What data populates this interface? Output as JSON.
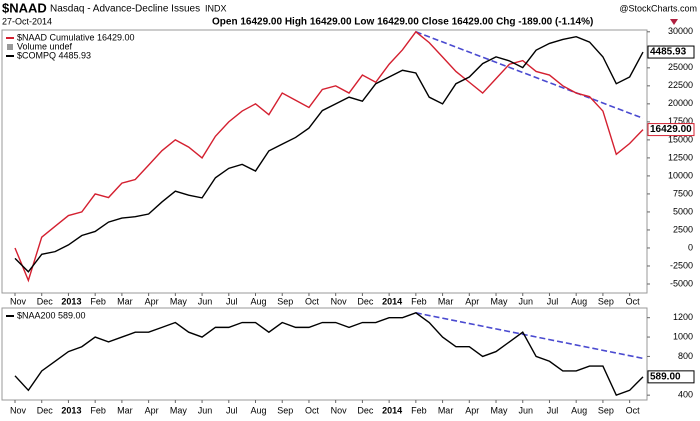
{
  "header": {
    "symbol": "$NAAD",
    "name": "Nasdaq - Advance-Decline Issues",
    "exchange": "INDX",
    "date": "27-Oct-2014",
    "quote": "Open 16429.00  High 16429.00  Low 16429.00  Close 16429.00  Chg -189.00 (-1.14%)",
    "brand": "@StockCharts.com"
  },
  "chart_data": [
    {
      "type": "line",
      "xlim": [
        0,
        47
      ],
      "xticks": [
        {
          "value": 0,
          "label": "Nov"
        },
        {
          "value": 2,
          "label": "Dec"
        },
        {
          "value": 4,
          "label": "2013"
        },
        {
          "value": 6,
          "label": "Feb"
        },
        {
          "value": 8,
          "label": "Mar"
        },
        {
          "value": 10,
          "label": "Apr"
        },
        {
          "value": 12,
          "label": "May"
        },
        {
          "value": 14,
          "label": "Jun"
        },
        {
          "value": 16,
          "label": "Jul"
        },
        {
          "value": 18,
          "label": "Aug"
        },
        {
          "value": 20,
          "label": "Sep"
        },
        {
          "value": 22,
          "label": "Oct"
        },
        {
          "value": 24,
          "label": "Nov"
        },
        {
          "value": 26,
          "label": "Dec"
        },
        {
          "value": 28,
          "label": "2014"
        },
        {
          "value": 30,
          "label": "Feb"
        },
        {
          "value": 32,
          "label": "Mar"
        },
        {
          "value": 34,
          "label": "Apr"
        },
        {
          "value": 36,
          "label": "May"
        },
        {
          "value": 38,
          "label": "Jun"
        },
        {
          "value": 40,
          "label": "Jul"
        },
        {
          "value": 42,
          "label": "Aug"
        },
        {
          "value": 44,
          "label": "Sep"
        },
        {
          "value": 46,
          "label": "Oct"
        }
      ],
      "ylim": [
        -6250,
        30250
      ],
      "yticks": [
        30000,
        25000,
        22500,
        20000,
        17500,
        15000,
        12500,
        10000,
        7500,
        5000,
        2500,
        0,
        -2500,
        -5000
      ],
      "y2lim": [
        2692,
        4650
      ],
      "volume_note": "Volume undef",
      "series": [
        {
          "name": "$NAAD Cumulative 16429.00",
          "color": "#d42030",
          "last_label": "16429.00",
          "values": [
            0,
            -4500,
            1500,
            3000,
            4500,
            5000,
            7500,
            7000,
            9000,
            9500,
            11500,
            13500,
            15000,
            14000,
            12500,
            15500,
            17500,
            19000,
            20000,
            18500,
            21500,
            20500,
            19500,
            22000,
            22500,
            21500,
            24000,
            23000,
            25500,
            27500,
            30000,
            28500,
            26500,
            24500,
            23000,
            21500,
            23500,
            25500,
            26000,
            24500,
            24000,
            22500,
            21500,
            21000,
            19000,
            13000,
            14500,
            16429
          ]
        },
        {
          "name": "$COMPQ 4485.93",
          "color": "#000000",
          "axis": "y2",
          "last_label": "4485.93",
          "values": [
            2950,
            2850,
            2980,
            3000,
            3050,
            3120,
            3150,
            3220,
            3250,
            3260,
            3280,
            3370,
            3450,
            3420,
            3400,
            3550,
            3620,
            3650,
            3600,
            3750,
            3800,
            3850,
            3920,
            4050,
            4100,
            4150,
            4120,
            4250,
            4300,
            4350,
            4330,
            4150,
            4100,
            4250,
            4300,
            4400,
            4450,
            4420,
            4370,
            4500,
            4550,
            4580,
            4600,
            4560,
            4450,
            4250,
            4300,
            4485.93
          ]
        }
      ],
      "trendline": {
        "color": "#4a4ad0",
        "x": [
          30,
          47
        ],
        "values": [
          30000,
          18000
        ]
      }
    },
    {
      "type": "line",
      "xlim": [
        0,
        47
      ],
      "xticks": [
        {
          "value": 0,
          "label": "Nov"
        },
        {
          "value": 2,
          "label": "Dec"
        },
        {
          "value": 4,
          "label": "2013"
        },
        {
          "value": 6,
          "label": "Feb"
        },
        {
          "value": 8,
          "label": "Mar"
        },
        {
          "value": 10,
          "label": "Apr"
        },
        {
          "value": 12,
          "label": "May"
        },
        {
          "value": 14,
          "label": "Jun"
        },
        {
          "value": 16,
          "label": "Jul"
        },
        {
          "value": 18,
          "label": "Aug"
        },
        {
          "value": 20,
          "label": "Sep"
        },
        {
          "value": 22,
          "label": "Oct"
        },
        {
          "value": 24,
          "label": "Nov"
        },
        {
          "value": 26,
          "label": "Dec"
        },
        {
          "value": 28,
          "label": "2014"
        },
        {
          "value": 30,
          "label": "Feb"
        },
        {
          "value": 32,
          "label": "Mar"
        },
        {
          "value": 34,
          "label": "Apr"
        },
        {
          "value": 36,
          "label": "May"
        },
        {
          "value": 38,
          "label": "Jun"
        },
        {
          "value": 40,
          "label": "Jul"
        },
        {
          "value": 42,
          "label": "Aug"
        },
        {
          "value": 44,
          "label": "Sep"
        },
        {
          "value": 46,
          "label": "Oct"
        }
      ],
      "ylim": [
        350,
        1300
      ],
      "yticks": [
        1200,
        1000,
        800,
        400
      ],
      "series": [
        {
          "name": "$NAA200 589.00",
          "color": "#000000",
          "last_label": "589.00",
          "values": [
            600,
            450,
            650,
            750,
            850,
            900,
            1000,
            950,
            1000,
            1050,
            1050,
            1100,
            1150,
            1050,
            1000,
            1100,
            1100,
            1150,
            1150,
            1050,
            1150,
            1100,
            1100,
            1150,
            1150,
            1100,
            1150,
            1150,
            1200,
            1200,
            1250,
            1150,
            1000,
            900,
            900,
            800,
            850,
            950,
            1050,
            800,
            750,
            650,
            650,
            700,
            700,
            400,
            450,
            589
          ]
        }
      ],
      "trendline": {
        "color": "#4a4ad0",
        "x": [
          30,
          47
        ],
        "values": [
          1250,
          780
        ]
      }
    }
  ]
}
